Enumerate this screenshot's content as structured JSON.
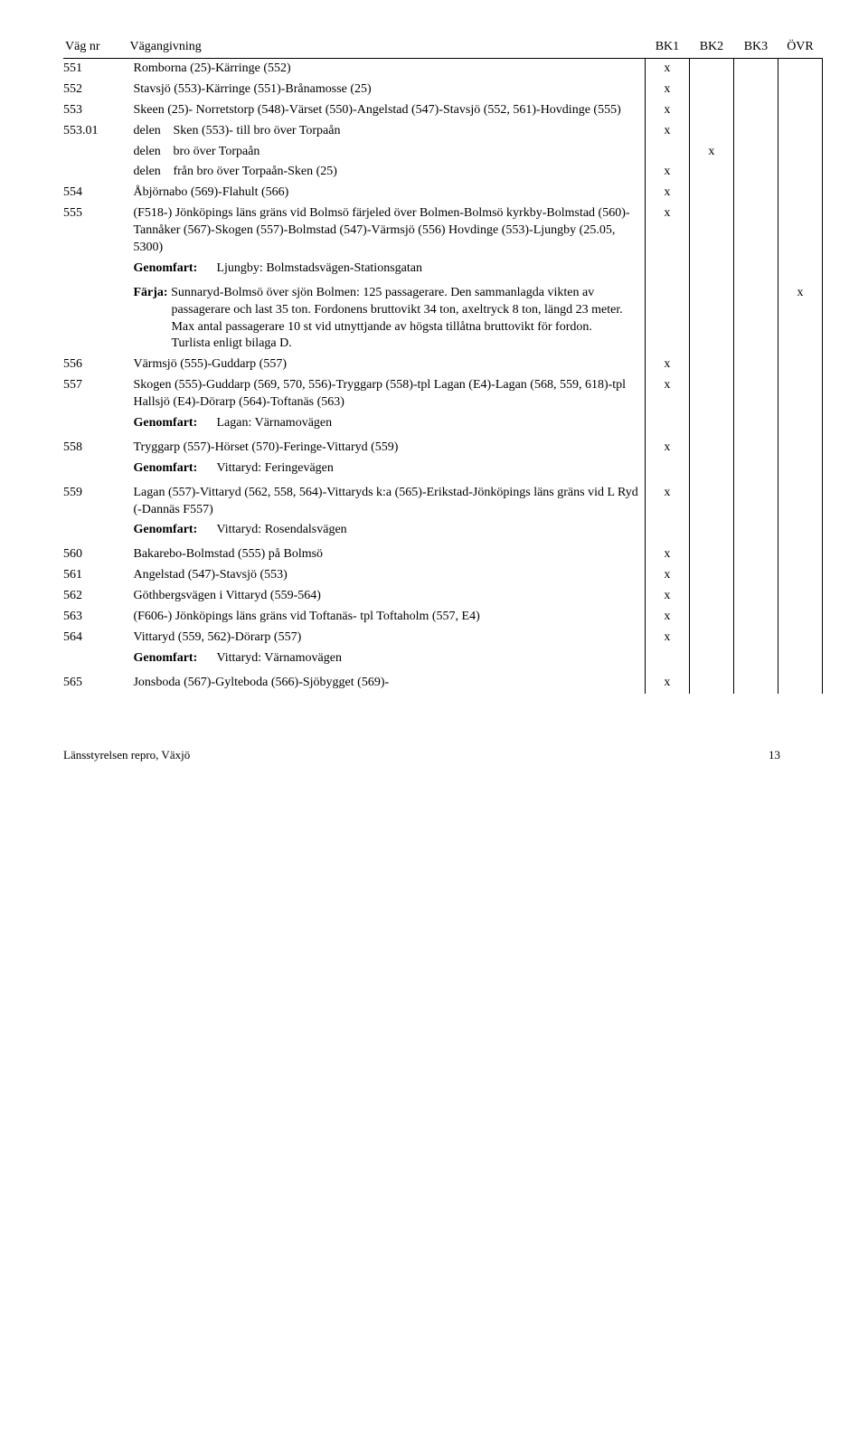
{
  "header": {
    "vagnr": "Väg nr",
    "vagangivning": "Vägangivning",
    "bk1": "BK1",
    "bk2": "BK2",
    "bk3": "BK3",
    "ovr": "ÖVR"
  },
  "labels": {
    "delen": "delen",
    "genomfart": "Genomfart:",
    "farja": "Färja:"
  },
  "rows": [
    {
      "nr": "551",
      "text": "Romborna (25)-Kärringe (552)",
      "bk1": "x"
    },
    {
      "nr": "552",
      "text": "Stavsjö (553)-Kärringe (551)-Brånamosse (25)",
      "bk1": "x"
    },
    {
      "nr": "553",
      "text": "Skeen (25)- Norretstorp (548)-Värset (550)-Angelstad (547)-Stavsjö (552, 561)-Hovdinge (555)",
      "bk1": "x"
    },
    {
      "nr": "553.01",
      "delen": true,
      "text": "Sken (553)- till bro över Torpaån",
      "bk1": "x"
    },
    {
      "nr": "",
      "delen": true,
      "text": "bro över Torpaån",
      "bk2": "x"
    },
    {
      "nr": "",
      "delen": true,
      "text": "från bro över Torpaån-Sken (25)",
      "bk1": "x"
    },
    {
      "nr": "554",
      "text": "Åbjörnabo (569)-Flahult (566)",
      "bk1": "x"
    },
    {
      "nr": "555",
      "text": "(F518-) Jönköpings läns gräns vid Bolmsö färjeled över Bolmen-Bolmsö kyrkby-Bolmstad (560)-Tannåker (567)-Skogen (557)-Bolmstad (547)-Värmsjö (556) Hovdinge (553)-Ljungby (25.05, 5300)",
      "bk1": "x"
    },
    {
      "genomfart": true,
      "value": "Ljungby: Bolmstadsvägen-Stationsgatan"
    },
    {
      "farja": true,
      "value": "Sunnaryd-Bolmsö över sjön Bolmen: 125 passagerare. Den sammanlagda vikten av passagerare och last 35 ton. Fordonens bruttovikt 34 ton, axeltryck 8 ton, längd 23 meter. Max antal passagerare 10 st vid utnyttjande av högsta tillåtna bruttovikt för fordon.\nTurlista enligt bilaga D.",
      "ovr": "x"
    },
    {
      "nr": "556",
      "text": "Värmsjö (555)-Guddarp (557)",
      "bk1": "x"
    },
    {
      "nr": "557",
      "text": "Skogen (555)-Guddarp (569, 570, 556)-Tryggarp (558)-tpl Lagan (E4)-Lagan (568, 559, 618)-tpl Hallsjö (E4)-Dörarp (564)-Toftanäs (563)",
      "bk1": "x"
    },
    {
      "genomfart": true,
      "value": "Lagan: Värnamovägen"
    },
    {
      "nr": "558",
      "text": "Tryggarp (557)-Hörset (570)-Feringe-Vittaryd (559)",
      "bk1": "x"
    },
    {
      "genomfart": true,
      "value": "Vittaryd: Feringevägen"
    },
    {
      "nr": "559",
      "text": "Lagan (557)-Vittaryd (562, 558, 564)-Vittaryds k:a (565)-Erikstad-Jönköpings läns gräns vid L Ryd (-Dannäs F557)",
      "bk1": "x"
    },
    {
      "genomfart": true,
      "value": "Vittaryd: Rosendalsvägen"
    },
    {
      "nr": "560",
      "text": "Bakarebo-Bolmstad (555) på Bolmsö",
      "bk1": "x"
    },
    {
      "nr": "561",
      "text": "Angelstad (547)-Stavsjö (553)",
      "bk1": "x"
    },
    {
      "nr": "562",
      "text": "Göthbergsvägen i Vittaryd (559-564)",
      "bk1": "x"
    },
    {
      "nr": "563",
      "text": "(F606-) Jönköpings läns gräns vid Toftanäs- tpl Toftaholm (557, E4)",
      "bk1": "x"
    },
    {
      "nr": "564",
      "text": "Vittaryd (559, 562)-Dörarp (557)",
      "bk1": "x"
    },
    {
      "genomfart": true,
      "value": "Vittaryd: Värnamovägen"
    },
    {
      "nr": "565",
      "text": "Jonsboda (567)-Gylteboda (566)-Sjöbygget (569)-",
      "bk1": "x"
    }
  ],
  "footer": {
    "left": "Länsstyrelsen repro, Växjö",
    "page": "13"
  }
}
